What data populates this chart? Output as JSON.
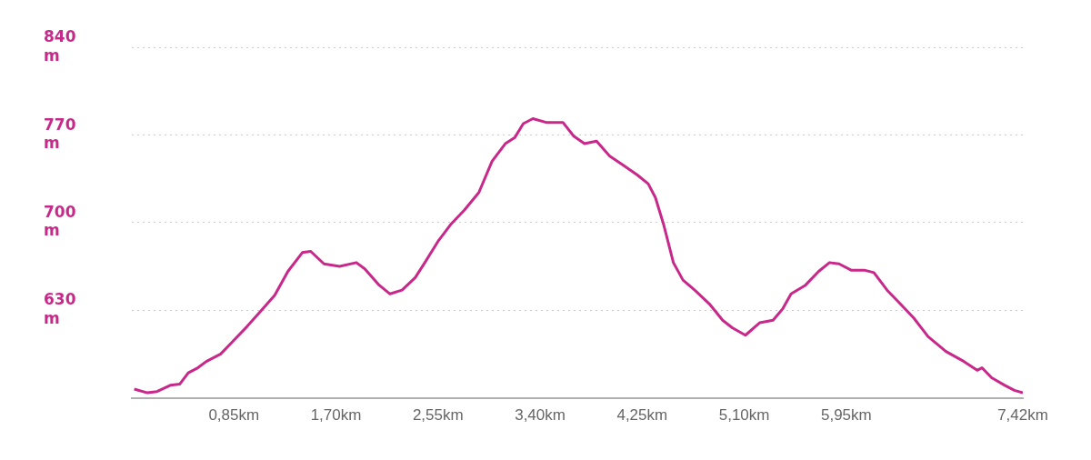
{
  "chart_data": {
    "type": "line",
    "x": [
      0.02,
      0.13,
      0.21,
      0.32,
      0.4,
      0.47,
      0.55,
      0.62,
      0.74,
      0.85,
      0.96,
      1.08,
      1.19,
      1.3,
      1.42,
      1.49,
      1.6,
      1.73,
      1.87,
      1.94,
      2.06,
      2.15,
      2.25,
      2.36,
      2.44,
      2.55,
      2.66,
      2.77,
      2.89,
      3.0,
      3.11,
      3.19,
      3.26,
      3.34,
      3.45,
      3.59,
      3.68,
      3.77,
      3.87,
      3.98,
      4.09,
      4.21,
      4.3,
      4.36,
      4.43,
      4.51,
      4.59,
      4.7,
      4.81,
      4.92,
      5.0,
      5.11,
      5.23,
      5.34,
      5.42,
      5.49,
      5.61,
      5.72,
      5.81,
      5.89,
      5.99,
      6.1,
      6.18,
      6.29,
      6.4,
      6.51,
      6.63,
      6.78,
      6.93,
      7.04,
      7.08,
      7.16,
      7.27,
      7.35,
      7.42
    ],
    "series": [
      {
        "color": "#c8288a",
        "values": [
          567,
          564,
          565,
          570,
          571,
          580,
          584,
          589,
          595,
          606,
          617,
          630,
          642,
          661,
          676,
          677,
          667,
          665,
          668,
          663,
          650,
          643,
          646,
          656,
          668,
          685,
          699,
          710,
          724,
          749,
          763,
          768,
          779,
          783,
          780,
          780,
          769,
          763,
          765,
          753,
          746,
          738,
          731,
          720,
          698,
          668,
          654,
          645,
          635,
          622,
          616,
          610,
          620,
          622,
          631,
          643,
          650,
          661,
          668,
          667,
          662,
          662,
          660,
          646,
          635,
          624,
          609,
          597,
          589,
          582,
          584,
          576,
          570,
          566,
          564
        ]
      }
    ],
    "xlim": [
      0,
      7.42
    ],
    "xticks": [
      {
        "value": 0.85,
        "label": "0,85km"
      },
      {
        "value": 1.7,
        "label": "1,70km"
      },
      {
        "value": 2.55,
        "label": "2,55km"
      },
      {
        "value": 3.4,
        "label": "3,40km"
      },
      {
        "value": 4.25,
        "label": "4,25km"
      },
      {
        "value": 5.1,
        "label": "5,10km"
      },
      {
        "value": 5.95,
        "label": "5,95km"
      },
      {
        "value": 7.42,
        "label": "7,42km"
      }
    ],
    "ylim": [
      560,
      840
    ],
    "yticks": [
      {
        "value": 630,
        "label": "630 m"
      },
      {
        "value": 700,
        "label": "700 m"
      },
      {
        "value": 770,
        "label": "770 m"
      },
      {
        "value": 840,
        "label": "840 m"
      }
    ],
    "grid": "y",
    "legend": false,
    "marker": "none",
    "line_style": "solid"
  }
}
